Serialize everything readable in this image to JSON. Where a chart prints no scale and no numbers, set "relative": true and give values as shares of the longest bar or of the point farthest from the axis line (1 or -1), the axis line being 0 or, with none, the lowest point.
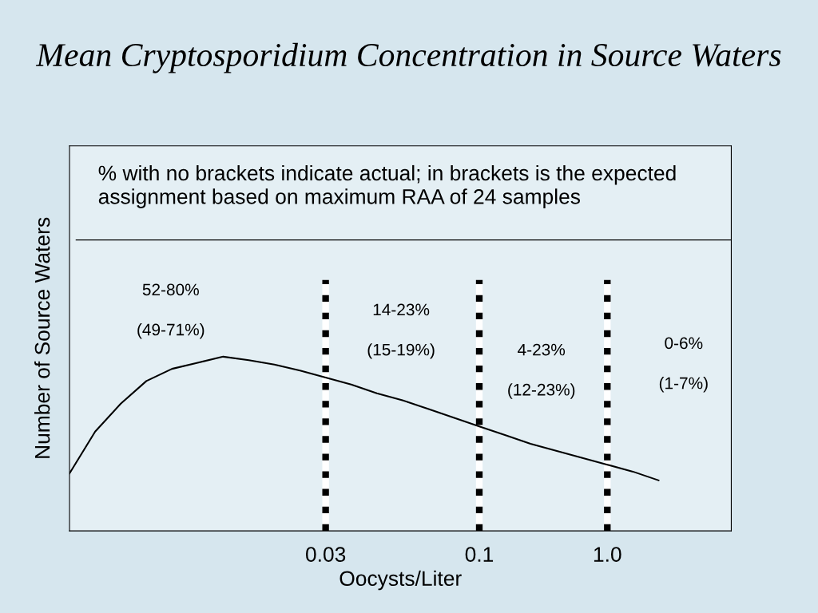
{
  "chart_data": {
    "type": "line",
    "title": "Mean Cryptosporidium Concentration in Source Waters",
    "xlabel": "Oocysts/Liter",
    "ylabel": "Number of Source Waters",
    "relative": true,
    "categories": [
      null,
      null,
      null,
      null,
      null,
      null,
      null,
      null,
      null,
      null,
      "0.03",
      null,
      null,
      null,
      null,
      null,
      "0.1",
      null,
      null,
      null,
      null,
      "1.0",
      null,
      null
    ],
    "series": [
      {
        "color": "#000000",
        "values": [
          0.33,
          0.57,
          0.73,
          0.86,
          0.93,
          0.965,
          1.0,
          0.98,
          0.955,
          0.92,
          0.88,
          0.84,
          0.79,
          0.75,
          0.7,
          0.65,
          0.6,
          0.55,
          0.5,
          0.46,
          0.42,
          0.38,
          0.34,
          0.29
        ]
      }
    ],
    "tick_labels": "x",
    "grid": "x",
    "legend": false,
    "marker": "none",
    "line_style": "solid",
    "annotations": [
      "% with no brackets indicate actual; in brackets is the expected assignment based on maximum RAA of 24 samples",
      "52-80%",
      "(49-71%)",
      "14-23%",
      "(15-19%)",
      "4-23%",
      "(12-23%)",
      "0-6%",
      "(1-7%)"
    ]
  }
}
